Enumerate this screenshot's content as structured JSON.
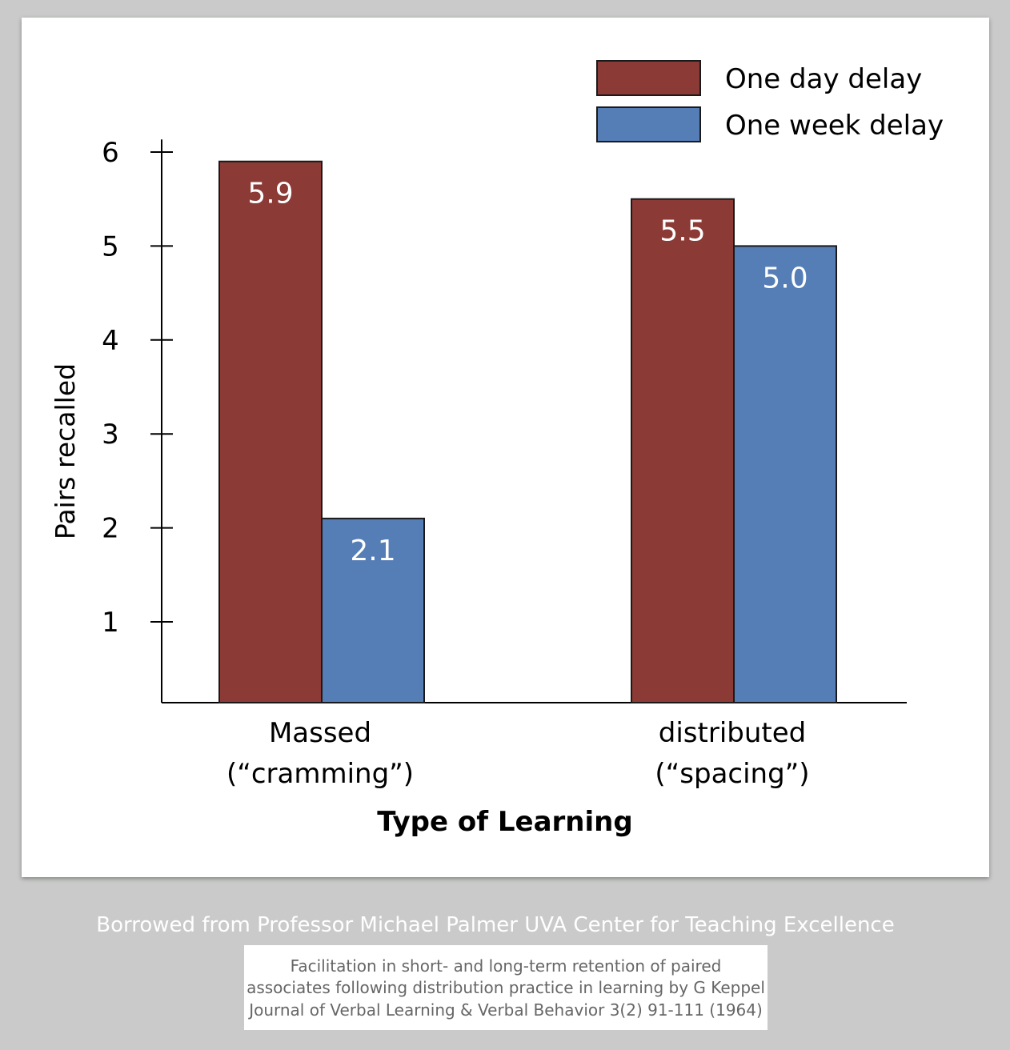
{
  "chart_data": {
    "type": "bar",
    "categories": [
      [
        "Massed",
        "(“cramming”)"
      ],
      [
        "distributed",
        "(“spacing”)"
      ]
    ],
    "series": [
      {
        "name": "One day delay",
        "values": [
          5.9,
          5.5
        ],
        "labels": [
          "5.9",
          "5.5"
        ],
        "color": "#8b3a36"
      },
      {
        "name": "One week delay",
        "values": [
          2.1,
          5.0
        ],
        "labels": [
          "2.1",
          "5.0"
        ],
        "color": "#557eb6"
      }
    ],
    "xlabel": "Type of Learning",
    "ylabel": "Pairs recalled",
    "yticks": [
      1,
      2,
      3,
      4,
      5,
      6
    ],
    "ylim": [
      0,
      6.1
    ],
    "grid": false,
    "legend_position": "top-right"
  },
  "credit": "Borrowed from Professor Michael Palmer UVA Center for Teaching Excellence",
  "citation": {
    "line1": "Facilitation in short- and long-term retention of paired",
    "line2": "associates following distribution practice in learning by G Keppel",
    "line3": "Journal of Verbal Learning & Verbal Behavior 3(2) 91-111 (1964)"
  },
  "colors": {
    "background": "#c9cac9",
    "one_day": "#8b3a36",
    "one_week": "#557eb6"
  }
}
